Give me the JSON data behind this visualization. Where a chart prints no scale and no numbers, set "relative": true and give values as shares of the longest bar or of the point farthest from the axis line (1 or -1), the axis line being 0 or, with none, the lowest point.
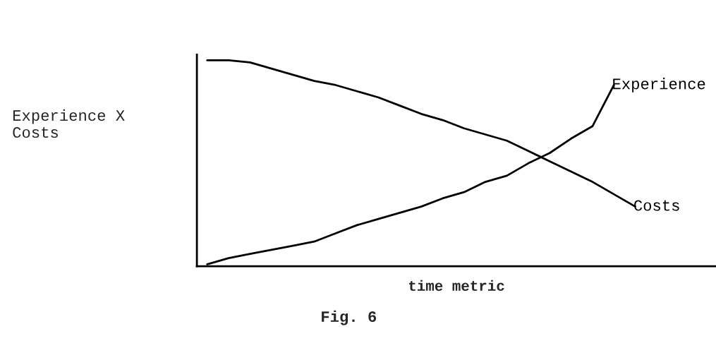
{
  "chart_data": {
    "type": "line",
    "relative": true,
    "xlabel": "time metric",
    "ylabel": "Experience X\nCosts",
    "annotations": [
      "Fig. 6"
    ],
    "tick_labels": false,
    "line_style": "solid",
    "categories": [
      null,
      null,
      null,
      null,
      null,
      null,
      null,
      null,
      null,
      null,
      null,
      null,
      null,
      null,
      null,
      null,
      null,
      null,
      null,
      null,
      null
    ],
    "series": [
      {
        "name": "Costs",
        "color": "#000000",
        "values": [
          1,
          1,
          0.99,
          0.96,
          0.93,
          0.9,
          0.88,
          0.85,
          0.82,
          0.78,
          0.74,
          0.71,
          0.67,
          0.64,
          0.61,
          0.56,
          0.51,
          0.46,
          0.41,
          0.35,
          0.29
        ]
      },
      {
        "name": "Experience",
        "color": "#000000",
        "values": [
          0.01,
          0.04,
          0.06,
          0.08,
          0.1,
          0.12,
          0.16,
          0.2,
          0.23,
          0.26,
          0.29,
          0.33,
          0.36,
          0.41,
          0.44,
          0.5,
          0.55,
          0.62,
          0.68,
          0.88,
          null
        ]
      }
    ]
  }
}
